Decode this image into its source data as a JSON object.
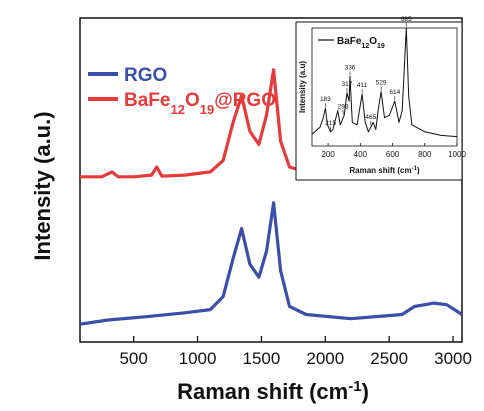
{
  "chart_data": {
    "type": "line",
    "title": "",
    "xlabel": "Raman shift (cm",
    "xlabel_sup": "-1",
    "xlabel_close": ")",
    "ylabel": "Intensity (a.u.)",
    "xlim": [
      80,
      3070
    ],
    "ylim": [
      0,
      1
    ],
    "x_ticks": [
      500,
      1000,
      1500,
      2000,
      2500,
      3000
    ],
    "y_ticks_shown": false,
    "legend_position": "top-left",
    "series": [
      {
        "name": "RGO",
        "color": "#3a4fa8",
        "points": [
          [
            80,
            0.055
          ],
          [
            300,
            0.068
          ],
          [
            600,
            0.078
          ],
          [
            900,
            0.09
          ],
          [
            1100,
            0.1
          ],
          [
            1200,
            0.14
          ],
          [
            1280,
            0.26
          ],
          [
            1345,
            0.35
          ],
          [
            1410,
            0.24
          ],
          [
            1480,
            0.2
          ],
          [
            1540,
            0.28
          ],
          [
            1595,
            0.43
          ],
          [
            1650,
            0.22
          ],
          [
            1720,
            0.11
          ],
          [
            1850,
            0.085
          ],
          [
            2200,
            0.072
          ],
          [
            2600,
            0.085
          ],
          [
            2700,
            0.11
          ],
          [
            2850,
            0.12
          ],
          [
            2950,
            0.115
          ],
          [
            3070,
            0.085
          ]
        ]
      },
      {
        "name_parts": [
          {
            "t": "BaFe"
          },
          {
            "t": "12",
            "sub": true
          },
          {
            "t": "O"
          },
          {
            "t": "19",
            "sub": true
          },
          {
            "t": "@RGO"
          }
        ],
        "color": "#e53b3b",
        "points": [
          [
            80,
            0.51
          ],
          [
            250,
            0.51
          ],
          [
            330,
            0.525
          ],
          [
            380,
            0.51
          ],
          [
            500,
            0.51
          ],
          [
            640,
            0.515
          ],
          [
            680,
            0.54
          ],
          [
            720,
            0.512
          ],
          [
            900,
            0.515
          ],
          [
            1100,
            0.525
          ],
          [
            1200,
            0.56
          ],
          [
            1280,
            0.68
          ],
          [
            1345,
            0.76
          ],
          [
            1410,
            0.65
          ],
          [
            1480,
            0.61
          ],
          [
            1540,
            0.7
          ],
          [
            1595,
            0.84
          ],
          [
            1650,
            0.62
          ],
          [
            1720,
            0.54
          ],
          [
            1850,
            0.525
          ],
          [
            2200,
            0.52
          ],
          [
            2600,
            0.525
          ],
          [
            2700,
            0.545
          ],
          [
            2850,
            0.55
          ],
          [
            2950,
            0.555
          ],
          [
            3070,
            0.54
          ]
        ]
      }
    ],
    "inset": {
      "type": "line",
      "legend_label_parts": [
        {
          "t": "BaFe"
        },
        {
          "t": "12",
          "sub": true
        },
        {
          "t": "O"
        },
        {
          "t": "19",
          "sub": true
        }
      ],
      "xlabel": "Raman shift (cm",
      "xlabel_sup": "-1",
      "xlabel_close": ")",
      "ylabel": "Intensity (a.u)",
      "xlim": [
        100,
        1000
      ],
      "ylim": [
        0,
        1
      ],
      "x_ticks": [
        200,
        400,
        600,
        800,
        1000
      ],
      "color": "#111111",
      "points": [
        [
          100,
          0.1
        ],
        [
          150,
          0.16
        ],
        [
          170,
          0.24
        ],
        [
          183,
          0.32
        ],
        [
          196,
          0.18
        ],
        [
          215,
          0.12
        ],
        [
          230,
          0.14
        ],
        [
          260,
          0.3
        ],
        [
          275,
          0.18
        ],
        [
          300,
          0.26
        ],
        [
          317,
          0.45
        ],
        [
          330,
          0.38
        ],
        [
          336,
          0.59
        ],
        [
          350,
          0.2
        ],
        [
          380,
          0.18
        ],
        [
          411,
          0.44
        ],
        [
          430,
          0.2
        ],
        [
          450,
          0.12
        ],
        [
          480,
          0.2
        ],
        [
          496,
          0.14
        ],
        [
          510,
          0.3
        ],
        [
          529,
          0.46
        ],
        [
          550,
          0.24
        ],
        [
          580,
          0.26
        ],
        [
          614,
          0.38
        ],
        [
          640,
          0.2
        ],
        [
          660,
          0.3
        ],
        [
          685,
          1.0
        ],
        [
          700,
          0.42
        ],
        [
          720,
          0.18
        ],
        [
          800,
          0.12
        ],
        [
          900,
          0.09
        ],
        [
          1000,
          0.08
        ]
      ],
      "peaks": [
        {
          "x": 183,
          "y": 0.32,
          "label": "183"
        },
        {
          "x": 215,
          "y": 0.12,
          "label": "215"
        },
        {
          "x": 293,
          "y": 0.26,
          "label": "293"
        },
        {
          "x": 317,
          "y": 0.45,
          "label": "317"
        },
        {
          "x": 336,
          "y": 0.59,
          "label": "336"
        },
        {
          "x": 411,
          "y": 0.44,
          "label": "411"
        },
        {
          "x": 465,
          "y": 0.17,
          "label": "465"
        },
        {
          "x": 529,
          "y": 0.46,
          "label": "529"
        },
        {
          "x": 614,
          "y": 0.38,
          "label": "614"
        },
        {
          "x": 685,
          "y": 1.0,
          "label": "685"
        }
      ]
    }
  }
}
